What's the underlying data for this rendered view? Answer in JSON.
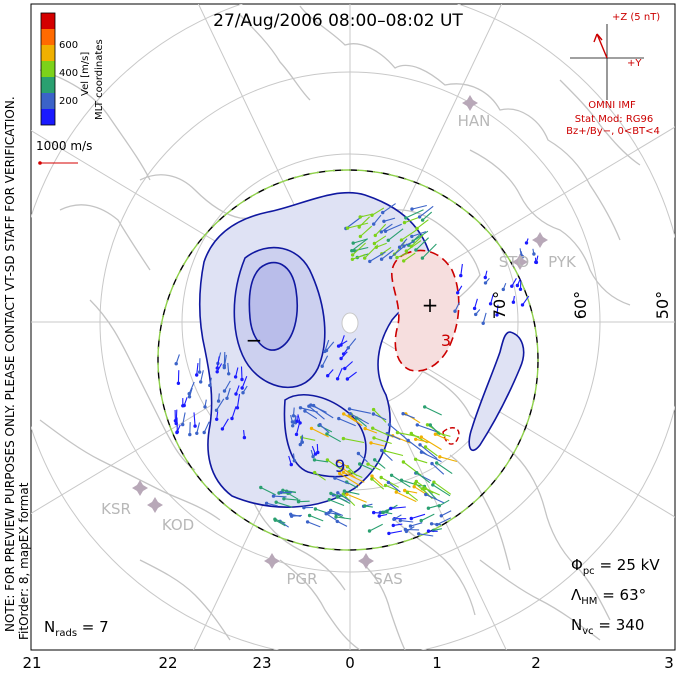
{
  "title": "27/Aug/2006 08:00–08:02 UT",
  "coordinate_system": "MLT coordinates",
  "colorbar": {
    "label": "Vel [m/s]",
    "ticks": [
      "600",
      "400",
      "200"
    ],
    "colors": [
      "#d40000",
      "#ff6a00",
      "#f0b000",
      "#7cd21a",
      "#2aa070",
      "#3b63c8",
      "#1a1aff"
    ]
  },
  "velocity_scale": "1000 m/s",
  "imf": {
    "z_label": "+Z (5 nT)",
    "y_label": "+Y",
    "source": "OMNI IMF",
    "model": "Stat Mod: RG96",
    "condition": "Bz+/By−, 0<BT<4",
    "color": "#cc0000"
  },
  "latitude_labels": [
    "70°",
    "60°",
    "50°"
  ],
  "mlt_labels": [
    "21",
    "22",
    "23",
    "0",
    "1",
    "2",
    "3"
  ],
  "stations": [
    "HAN",
    "STO",
    "PYK",
    "KSR",
    "KOD",
    "PGR",
    "SAS"
  ],
  "side_note": {
    "line1": "NOTE: FOR PREVIEW PURPOSES ONLY. PLEASE CONTACT VT-SD STAFF FOR VERIFICATION.",
    "line2": "FitOrder: 8, mapEX format"
  },
  "stats": {
    "phi_pc_sym": "Φ",
    "phi_pc_sub": "pc",
    "phi_pc_val": " = 25 kV",
    "lambda_sym": "Λ",
    "lambda_sub": "HM",
    "lambda_val": " = 63°",
    "nvc_sym": "N",
    "nvc_sub": "vc",
    "nvc_val": " = 340",
    "nrads_sym": "N",
    "nrads_sub": "rads",
    "nrads_val": " = 7"
  },
  "potential_labels": {
    "minimum": "−",
    "maximum": "+",
    "contour_a": "9",
    "contour_b": "3"
  },
  "colors": {
    "negative_cell": "#dfe2f4",
    "negative_core": "#b9bdea",
    "negative_contour": "#1018a0",
    "positive_cell": "#f6dede",
    "positive_contour": "#cc0000",
    "hmb_dash": "#8fd14a",
    "grid": "#c8c8c8",
    "coast": "#c4c4c4",
    "station": "#b8a8b8"
  }
}
